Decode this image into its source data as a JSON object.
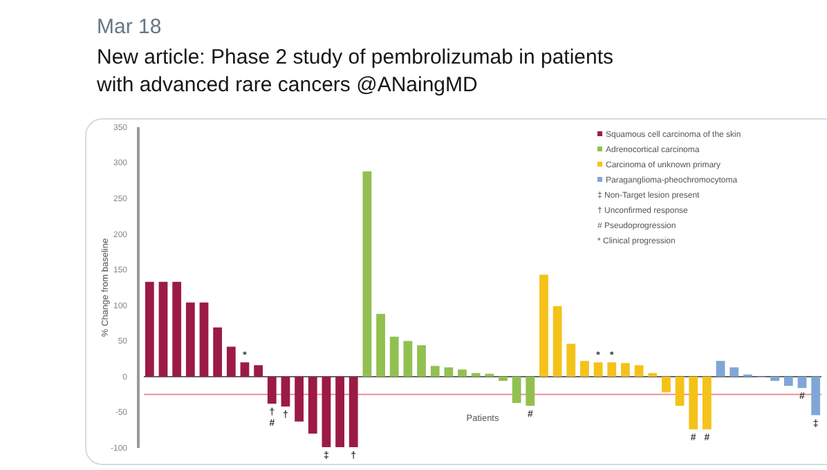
{
  "chart_data": {
    "type": "bar",
    "title": "New article: Phase 2 study of pembrolizumab in patients with advanced rare cancers @ANaingMD",
    "subtitle": "Mar 18",
    "ylabel": "% Change from baseline",
    "xlabel": "Patients",
    "categories": [
      null,
      null,
      null,
      null,
      null,
      null,
      null,
      null,
      null,
      null,
      null,
      null,
      null,
      null,
      null,
      null,
      null,
      null,
      null,
      null,
      null,
      null,
      null,
      null,
      null,
      null,
      null,
      null,
      null,
      null,
      null,
      null,
      null,
      null,
      null,
      null,
      null,
      null,
      null,
      null,
      null,
      null,
      null,
      null,
      null,
      null,
      null,
      null,
      null,
      null
    ],
    "series": [
      {
        "name": "Squamous cell carcinoma of the skin",
        "color": "#9b1b45",
        "values": [
          133,
          133,
          133,
          104,
          104,
          69,
          42,
          20,
          16,
          -38,
          -42,
          -63,
          -80,
          -99,
          -99,
          -99,
          null,
          null,
          null,
          null,
          null,
          null,
          null,
          null,
          null,
          null,
          null,
          null,
          null,
          null,
          null,
          null,
          null,
          null,
          null,
          null,
          null,
          null,
          null,
          null,
          null,
          null,
          null,
          null,
          null,
          null,
          null,
          null,
          null,
          null
        ],
        "value_labels": [
          null,
          null,
          null,
          null,
          null,
          null,
          null,
          "*",
          null,
          "† #",
          "†",
          null,
          null,
          "‡",
          null,
          "†",
          null,
          null,
          null,
          null,
          null,
          null,
          null,
          null,
          null,
          null,
          null,
          null,
          null,
          null,
          null,
          null,
          null,
          null,
          null,
          null,
          null,
          null,
          null,
          null,
          null,
          null,
          null,
          null,
          null,
          null,
          null,
          null,
          null,
          null
        ]
      },
      {
        "name": "Adrenocortical carcinoma",
        "color": "#92c050",
        "values": [
          null,
          null,
          null,
          null,
          null,
          null,
          null,
          null,
          null,
          null,
          null,
          null,
          null,
          null,
          null,
          null,
          288,
          88,
          56,
          50,
          44,
          15,
          13,
          10,
          5,
          4,
          -6,
          -37,
          -41,
          null,
          null,
          null,
          null,
          null,
          null,
          null,
          null,
          null,
          null,
          null,
          null,
          null,
          null,
          null,
          null,
          null,
          null,
          null,
          null,
          null
        ],
        "value_labels": [
          null,
          null,
          null,
          null,
          null,
          null,
          null,
          null,
          null,
          null,
          null,
          null,
          null,
          null,
          null,
          null,
          null,
          null,
          null,
          null,
          null,
          null,
          null,
          null,
          null,
          null,
          null,
          null,
          "#",
          null,
          null,
          null,
          null,
          null,
          null,
          null,
          null,
          null,
          null,
          null,
          null,
          null,
          null,
          null,
          null,
          null,
          null,
          null,
          null,
          null
        ]
      },
      {
        "name": "Carcinoma of unknown primary",
        "color": "#f5c21a",
        "values": [
          null,
          null,
          null,
          null,
          null,
          null,
          null,
          null,
          null,
          null,
          null,
          null,
          null,
          null,
          null,
          null,
          null,
          null,
          null,
          null,
          null,
          null,
          null,
          null,
          null,
          null,
          null,
          null,
          null,
          143,
          99,
          46,
          22,
          20,
          20,
          19,
          16,
          5,
          -22,
          -41,
          -74,
          -74,
          null,
          null,
          null,
          null,
          null,
          null,
          null,
          null
        ],
        "value_labels": [
          null,
          null,
          null,
          null,
          null,
          null,
          null,
          null,
          null,
          null,
          null,
          null,
          null,
          null,
          null,
          null,
          null,
          null,
          null,
          null,
          null,
          null,
          null,
          null,
          null,
          null,
          null,
          null,
          null,
          null,
          null,
          null,
          null,
          "*",
          "*",
          null,
          null,
          null,
          null,
          null,
          "#",
          "#",
          null,
          null,
          null,
          null,
          null,
          null,
          null,
          null
        ]
      },
      {
        "name": "Paraganglioma-pheochromocytoma",
        "color": "#7fa6d6",
        "values": [
          null,
          null,
          null,
          null,
          null,
          null,
          null,
          null,
          null,
          null,
          null,
          null,
          null,
          null,
          null,
          null,
          null,
          null,
          null,
          null,
          null,
          null,
          null,
          null,
          null,
          null,
          null,
          null,
          null,
          null,
          null,
          null,
          null,
          null,
          null,
          null,
          null,
          null,
          null,
          null,
          null,
          null,
          22,
          13,
          3,
          0,
          -6,
          -13,
          -16,
          -54
        ],
        "value_labels": [
          null,
          null,
          null,
          null,
          null,
          null,
          null,
          null,
          null,
          null,
          null,
          null,
          null,
          null,
          null,
          null,
          null,
          null,
          null,
          null,
          null,
          null,
          null,
          null,
          null,
          null,
          null,
          null,
          null,
          null,
          null,
          null,
          null,
          null,
          null,
          null,
          null,
          null,
          null,
          null,
          null,
          null,
          null,
          null,
          null,
          null,
          null,
          null,
          "#",
          "‡"
        ]
      }
    ],
    "annotations": [
      "‡ Non-Target lesion present",
      "† Unconfirmed response",
      "# Pseudoprogression",
      "* Clinical progression"
    ],
    "ylim": [
      -100,
      350
    ],
    "yticks": [
      -100,
      -50,
      0,
      50,
      100,
      150,
      200,
      250,
      300,
      350
    ],
    "ref_lines": [
      {
        "axis": "y",
        "value": -25,
        "color": "#e8808c"
      }
    ],
    "legend": "top right"
  }
}
